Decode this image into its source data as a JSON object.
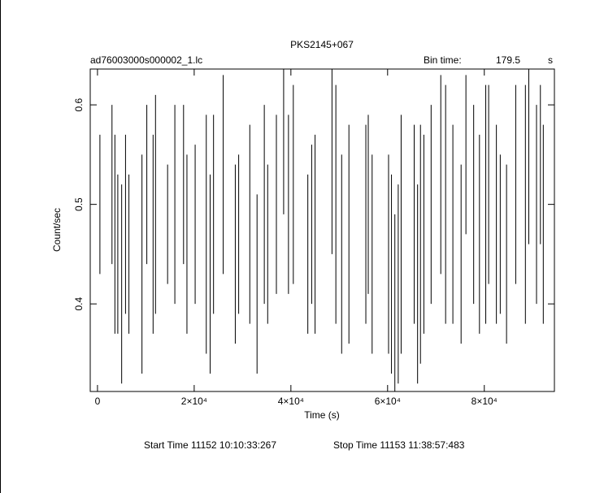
{
  "chart_data": {
    "type": "errorbar",
    "title": "PKS2145+067",
    "file_label": "ad76003000s000002_1.lc",
    "bin_time_label": "Bin time:",
    "bin_time_value": "179.5",
    "bin_time_unit": "s",
    "x_label": "Time (s)",
    "y_label": "Count/sec",
    "start_time": "Start Time 11152 10:10:33:267",
    "stop_time": "Stop Time 11153 11:38:57:483",
    "xlim": [
      -1500,
      94500
    ],
    "ylim": [
      0.312,
      0.636
    ],
    "xticks": [
      0,
      {
        "value": 20000,
        "label": "2×10⁴"
      },
      {
        "value": 40000,
        "label": "4×10⁴"
      },
      {
        "value": 60000,
        "label": "6×10⁴"
      },
      {
        "value": 80000,
        "label": "8×10⁴"
      }
    ],
    "yticks": [
      0.4,
      0.5,
      0.6
    ],
    "color": "#000000",
    "x": [
      500,
      3000,
      3600,
      4200,
      5000,
      5800,
      6500,
      9200,
      10200,
      11500,
      12000,
      14500,
      16000,
      17800,
      18500,
      20200,
      22500,
      23300,
      24000,
      26000,
      28500,
      29200,
      31500,
      33000,
      34500,
      35200,
      37000,
      38500,
      39500,
      40500,
      43500,
      44300,
      45000,
      48500,
      49300,
      50500,
      52000,
      55500,
      56000,
      56800,
      60200,
      60800,
      61500,
      62200,
      62800,
      65500,
      66200,
      66800,
      67500,
      69000,
      71000,
      72000,
      73500,
      75200,
      76200,
      77800,
      79000,
      80300,
      80900,
      82500,
      83300,
      84600,
      86500,
      88500,
      89200,
      90800,
      91600,
      92200
    ],
    "values": [
      0.5,
      0.52,
      0.47,
      0.45,
      0.42,
      0.48,
      0.45,
      0.44,
      0.52,
      0.47,
      0.5,
      0.48,
      0.5,
      0.52,
      0.46,
      0.48,
      0.47,
      0.43,
      0.49,
      0.53,
      0.45,
      0.47,
      0.48,
      0.42,
      0.5,
      0.46,
      0.5,
      0.57,
      0.5,
      0.52,
      0.45,
      0.48,
      0.47,
      0.55,
      0.5,
      0.45,
      0.47,
      0.48,
      0.5,
      0.45,
      0.45,
      0.43,
      0.4,
      0.42,
      0.47,
      0.48,
      0.42,
      0.46,
      0.47,
      0.5,
      0.53,
      0.5,
      0.48,
      0.45,
      0.55,
      0.5,
      0.47,
      0.5,
      0.52,
      0.48,
      0.47,
      0.45,
      0.52,
      0.5,
      0.56,
      0.5,
      0.54,
      0.48
    ],
    "errors": [
      0.07,
      0.08,
      0.1,
      0.08,
      0.1,
      0.09,
      0.08,
      0.11,
      0.08,
      0.1,
      0.11,
      0.06,
      0.1,
      0.08,
      0.09,
      0.08,
      0.12,
      0.1,
      0.1,
      0.1,
      0.09,
      0.08,
      0.1,
      0.09,
      0.1,
      0.08,
      0.09,
      0.08,
      0.09,
      0.1,
      0.08,
      0.08,
      0.1,
      0.1,
      0.12,
      0.1,
      0.11,
      0.1,
      0.09,
      0.1,
      0.1,
      0.1,
      0.09,
      0.1,
      0.12,
      0.1,
      0.1,
      0.12,
      0.1,
      0.1,
      0.1,
      0.12,
      0.1,
      0.09,
      0.08,
      0.1,
      0.1,
      0.12,
      0.1,
      0.1,
      0.08,
      0.09,
      0.1,
      0.12,
      0.1,
      0.1,
      0.08,
      0.1
    ]
  }
}
